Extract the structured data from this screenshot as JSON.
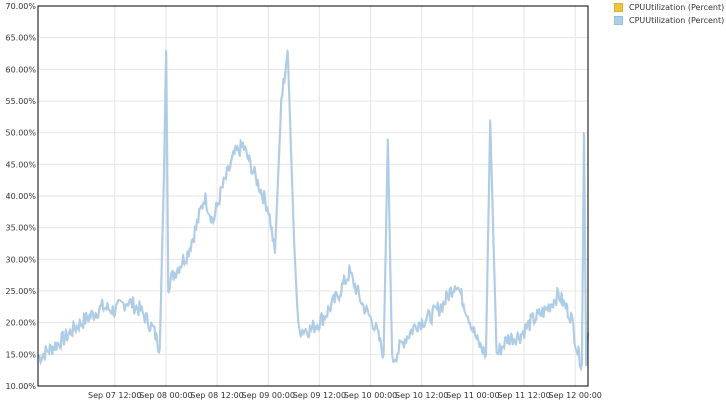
{
  "chart_data": {
    "type": "line",
    "title": "",
    "xlabel": "",
    "ylabel": "",
    "ylim": [
      10,
      70
    ],
    "y_ticks": [
      "10.00%",
      "15.00%",
      "20.00%",
      "25.00%",
      "30.00%",
      "35.00%",
      "40.00%",
      "45.00%",
      "50.00%",
      "55.00%",
      "60.00%",
      "65.00%",
      "70.00%"
    ],
    "x_range": [
      "Sep 06 18:00",
      "Sep 12 03:00"
    ],
    "x_ticks": [
      "Sep 07 12:00",
      "Sep 08 00:00",
      "Sep 08 12:00",
      "Sep 09 00:00",
      "Sep 09 12:00",
      "Sep 10 00:00",
      "Sep 10 12:00",
      "Sep 11 00:00",
      "Sep 11 12:00",
      "Sep 12 00:00"
    ],
    "grid": true,
    "legend_position": "top-right",
    "series": [
      {
        "name": "CPUUtilization (Percent)",
        "color": "#f0c33c",
        "values": []
      },
      {
        "name": "CPUUtilization (Percent)",
        "color": "#a9d0ec",
        "line_color": "#a9cdea",
        "values": [
          [
            "Sep 06 18:00",
            14.5
          ],
          [
            "Sep 06 21:00",
            16
          ],
          [
            "Sep 07 00:00",
            17.5
          ],
          [
            "Sep 07 03:00",
            19.5
          ],
          [
            "Sep 07 06:00",
            21
          ],
          [
            "Sep 07 09:00",
            22.5
          ],
          [
            "Sep 07 12:00",
            22
          ],
          [
            "Sep 07 15:00",
            23.5
          ],
          [
            "Sep 07 18:00",
            22
          ],
          [
            "Sep 07 21:00",
            19
          ],
          [
            "Sep 07 22:30",
            16
          ],
          [
            "Sep 07 23:30",
            44
          ],
          [
            "Sep 08 00:00",
            63
          ],
          [
            "Sep 08 00:30",
            26
          ],
          [
            "Sep 08 02:00",
            28
          ],
          [
            "Sep 08 05:00",
            31
          ],
          [
            "Sep 08 07:00",
            35
          ],
          [
            "Sep 08 09:00",
            40
          ],
          [
            "Sep 08 11:00",
            36
          ],
          [
            "Sep 08 13:00",
            41
          ],
          [
            "Sep 08 16:00",
            46.5
          ],
          [
            "Sep 08 18:00",
            48
          ],
          [
            "Sep 08 21:00",
            43
          ],
          [
            "Sep 09 00:00",
            38
          ],
          [
            "Sep 09 01:30",
            31
          ],
          [
            "Sep 09 03:00",
            55
          ],
          [
            "Sep 09 04:30",
            63
          ],
          [
            "Sep 09 06:00",
            33
          ],
          [
            "Sep 09 07:00",
            19
          ],
          [
            "Sep 09 10:00",
            19
          ],
          [
            "Sep 09 13:00",
            21
          ],
          [
            "Sep 09 16:00",
            24
          ],
          [
            "Sep 09 19:00",
            28
          ],
          [
            "Sep 09 22:00",
            23
          ],
          [
            "Sep 10 01:00",
            19.5
          ],
          [
            "Sep 10 03:00",
            15
          ],
          [
            "Sep 10 04:00",
            49
          ],
          [
            "Sep 10 05:00",
            14
          ],
          [
            "Sep 10 08:00",
            17.5
          ],
          [
            "Sep 10 11:00",
            20
          ],
          [
            "Sep 10 14:00",
            21
          ],
          [
            "Sep 10 17:00",
            23
          ],
          [
            "Sep 10 20:00",
            26.5
          ],
          [
            "Sep 10 23:00",
            21
          ],
          [
            "Sep 11 01:00",
            17
          ],
          [
            "Sep 11 03:00",
            15
          ],
          [
            "Sep 11 04:00",
            52
          ],
          [
            "Sep 11 05:30",
            15
          ],
          [
            "Sep 11 08:00",
            17.5
          ],
          [
            "Sep 11 11:00",
            18
          ],
          [
            "Sep 11 14:00",
            20.5
          ],
          [
            "Sep 11 17:00",
            22
          ],
          [
            "Sep 11 20:00",
            24.5
          ],
          [
            "Sep 11 23:00",
            21
          ],
          [
            "Sep 12 00:30",
            15.5
          ],
          [
            "Sep 12 01:30",
            13.5
          ],
          [
            "Sep 12 02:00",
            50
          ],
          [
            "Sep 12 02:30",
            14
          ],
          [
            "Sep 12 03:00",
            18.5
          ]
        ]
      }
    ]
  }
}
